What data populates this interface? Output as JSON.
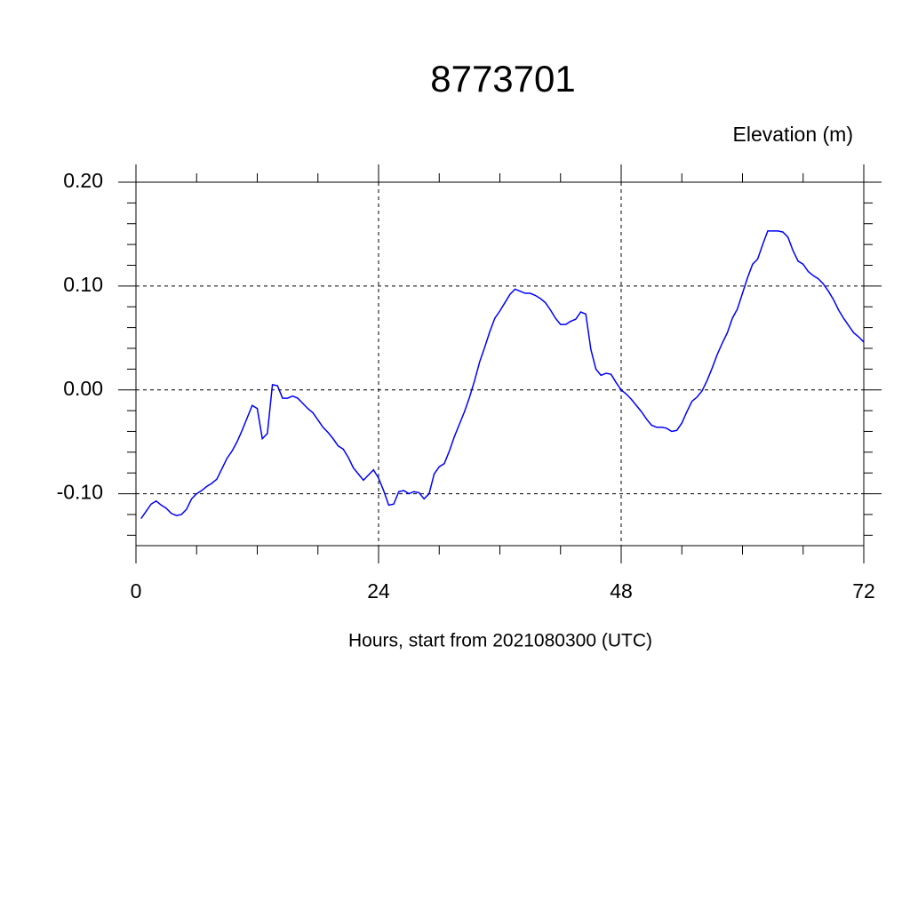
{
  "chart_data": {
    "type": "line",
    "title": "8773701",
    "y_label": "Elevation (m)",
    "x_label": "Hours, start from 2021080300 (UTC)",
    "xlim": [
      0,
      72
    ],
    "xticks": [
      0,
      24,
      48,
      72
    ],
    "xminor_ticks": [
      6,
      12,
      18,
      30,
      36,
      42,
      54,
      60,
      66
    ],
    "ylim": [
      -0.15,
      0.2
    ],
    "yticks": [
      {
        "value": -0.1,
        "label": "-0.10"
      },
      {
        "value": 0,
        "label": "0.00"
      },
      {
        "value": 0.1,
        "label": "0.10"
      },
      {
        "value": 0.2,
        "label": "0.20"
      }
    ],
    "yminor_ticks": [
      -0.14,
      -0.12,
      -0.08,
      -0.06,
      -0.04,
      -0.02,
      0.02,
      0.04,
      0.06,
      0.08,
      0.12,
      0.14,
      0.16,
      0.18
    ],
    "grid": true,
    "series": [
      {
        "color": "#0000ff",
        "x": [
          0.5,
          1,
          1.5,
          2,
          2.5,
          3,
          3.5,
          4,
          4.5,
          5,
          5.5,
          6,
          6.5,
          7,
          7.5,
          8,
          8.5,
          9,
          9.5,
          10,
          10.5,
          11,
          11.5,
          12,
          12.5,
          13,
          13.5,
          14,
          14.5,
          15,
          15.5,
          16,
          16.5,
          17,
          17.5,
          18,
          18.5,
          19,
          19.5,
          20,
          20.5,
          21,
          21.5,
          22,
          22.5,
          23,
          23.5,
          24,
          24.5,
          25,
          25.5,
          26,
          26.5,
          27,
          27.5,
          28,
          28.5,
          29,
          29.5,
          30,
          30.5,
          31,
          31.5,
          32,
          32.5,
          33,
          33.5,
          34,
          34.5,
          35,
          35.5,
          36,
          36.5,
          37,
          37.5,
          38,
          38.5,
          39,
          39.5,
          40,
          40.5,
          41,
          41.5,
          42,
          42.5,
          43,
          43.5,
          44,
          44.5,
          45,
          45.5,
          46,
          46.5,
          47,
          47.5,
          48,
          48.5,
          49,
          49.5,
          50,
          50.5,
          51,
          51.5,
          52,
          52.5,
          53,
          53.5,
          54,
          54.5,
          55,
          55.5,
          56,
          56.5,
          57,
          57.5,
          58,
          58.5,
          59,
          59.5,
          60,
          60.5,
          61,
          61.5,
          62,
          62.5,
          63,
          63.5,
          64,
          64.5,
          65,
          65.5,
          66,
          66.5,
          67,
          67.5,
          68,
          68.5,
          69,
          69.5,
          70,
          70.5,
          71,
          71.5,
          72
        ],
        "values": [
          -0.124,
          -0.117,
          -0.11,
          -0.107,
          -0.111,
          -0.114,
          -0.119,
          -0.121,
          -0.12,
          -0.115,
          -0.105,
          -0.1,
          -0.097,
          -0.093,
          -0.09,
          -0.086,
          -0.076,
          -0.066,
          -0.059,
          -0.05,
          -0.039,
          -0.027,
          -0.015,
          -0.018,
          -0.047,
          -0.042,
          0.005,
          0.004,
          -0.008,
          -0.008,
          -0.006,
          -0.008,
          -0.013,
          -0.018,
          -0.022,
          -0.029,
          -0.036,
          -0.041,
          -0.047,
          -0.054,
          -0.057,
          -0.065,
          -0.075,
          -0.081,
          -0.087,
          -0.082,
          -0.077,
          -0.085,
          -0.097,
          -0.111,
          -0.11,
          -0.098,
          -0.097,
          -0.1,
          -0.098,
          -0.099,
          -0.105,
          -0.1,
          -0.081,
          -0.074,
          -0.071,
          -0.059,
          -0.045,
          -0.033,
          -0.021,
          -0.007,
          0.009,
          0.027,
          0.041,
          0.056,
          0.069,
          0.076,
          0.084,
          0.092,
          0.097,
          0.095,
          0.093,
          0.093,
          0.091,
          0.088,
          0.084,
          0.077,
          0.069,
          0.063,
          0.063,
          0.066,
          0.068,
          0.075,
          0.073,
          0.039,
          0.02,
          0.014,
          0.016,
          0.015,
          0.007,
          0.0,
          -0.004,
          -0.009,
          -0.015,
          -0.021,
          -0.028,
          -0.034,
          -0.036,
          -0.036,
          -0.037,
          -0.04,
          -0.039,
          -0.032,
          -0.021,
          -0.011,
          -0.007,
          -0.001,
          0.009,
          0.021,
          0.034,
          0.045,
          0.055,
          0.069,
          0.078,
          0.093,
          0.108,
          0.121,
          0.126,
          0.14,
          0.153,
          0.153,
          0.153,
          0.152,
          0.147,
          0.134,
          0.124,
          0.121,
          0.114,
          0.11,
          0.107,
          0.102,
          0.095,
          0.087,
          0.077,
          0.069,
          0.062,
          0.055,
          0.051,
          0.046
        ]
      }
    ]
  }
}
